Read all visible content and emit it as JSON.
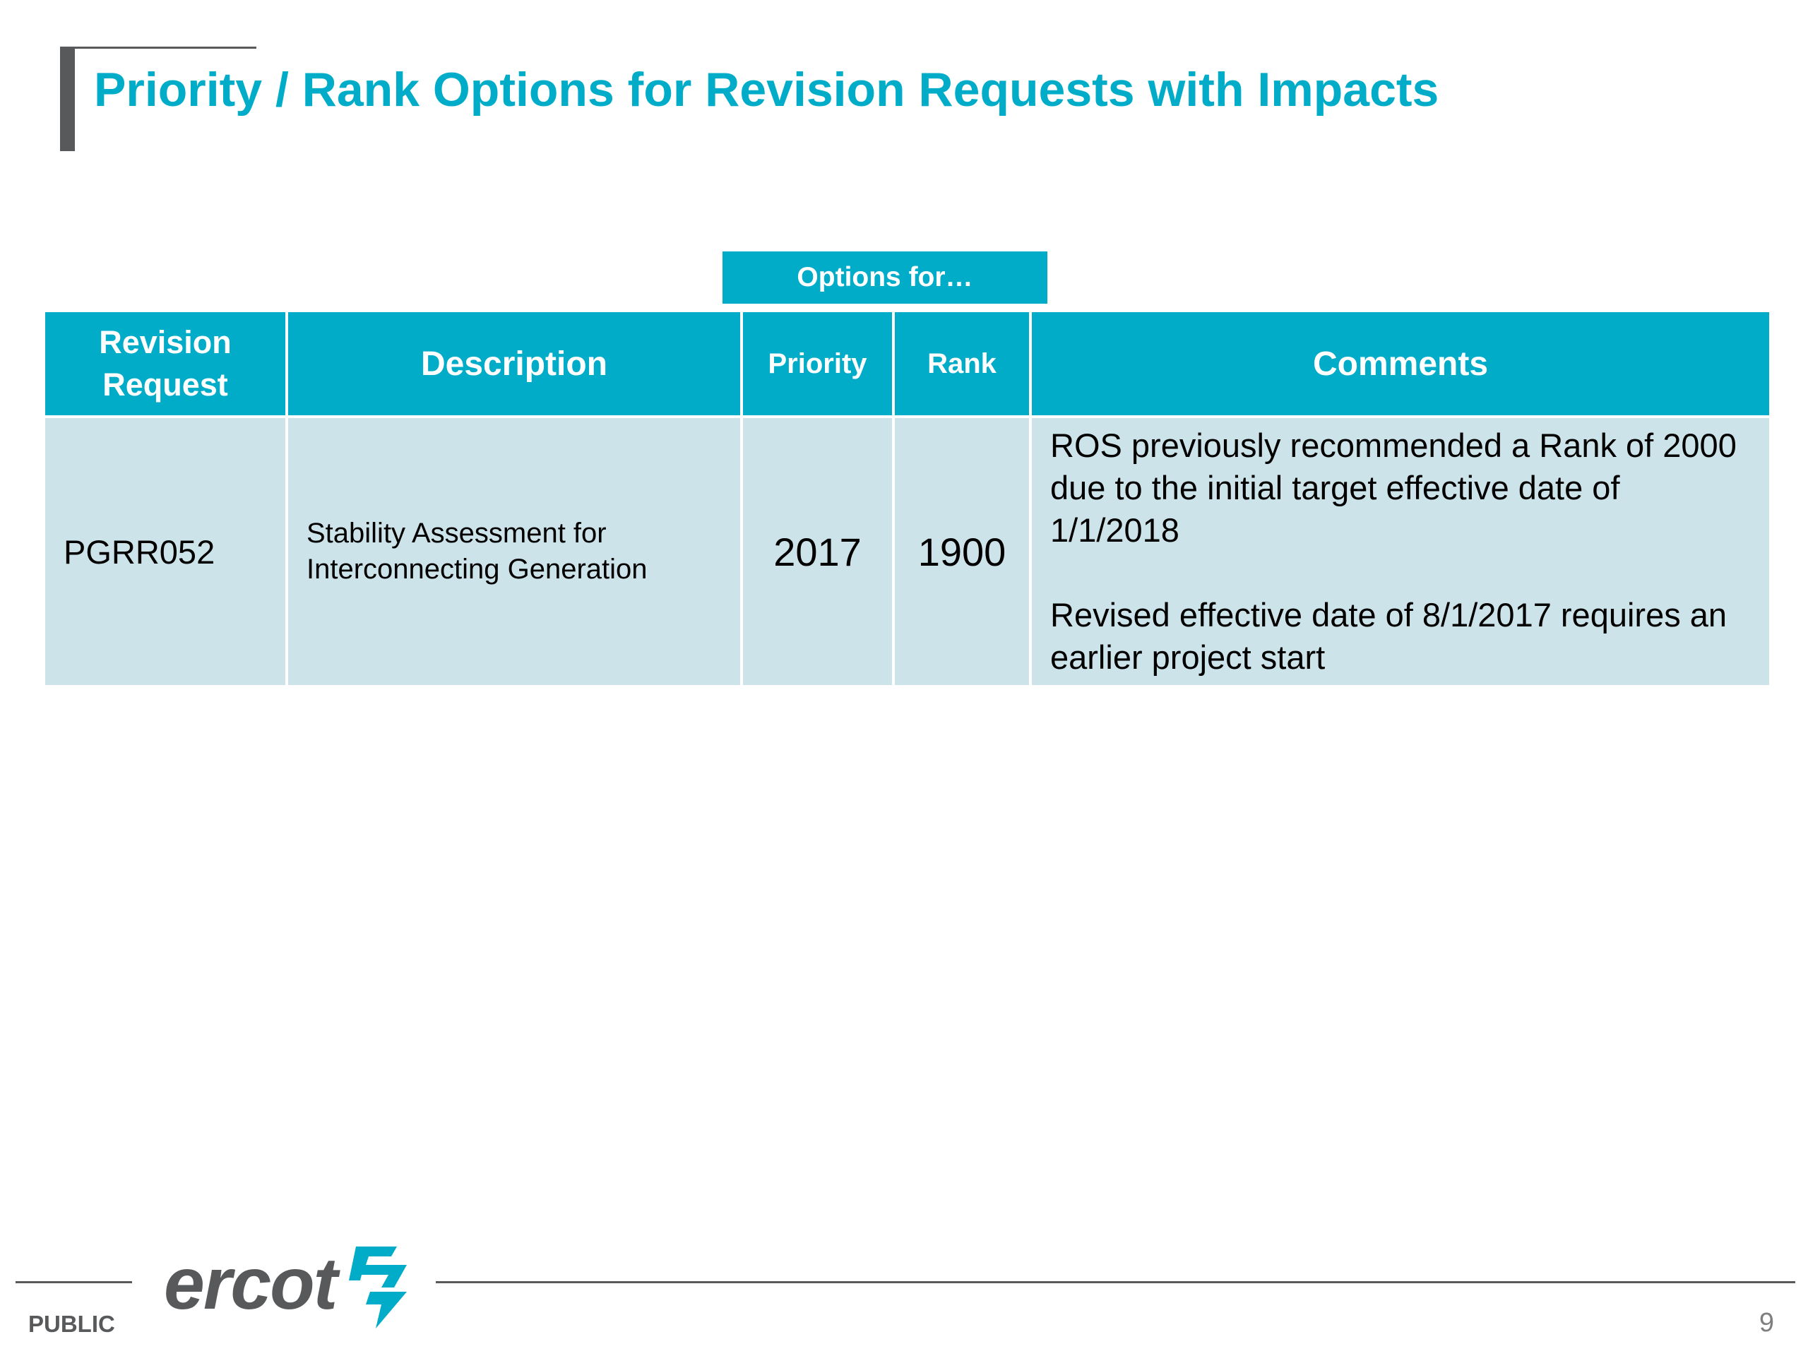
{
  "slide": {
    "title": "Priority / Rank Options for Revision Requests with Impacts",
    "options_label": "Options for…",
    "page_number": "9",
    "classification": "PUBLIC",
    "logo_text": "ercot"
  },
  "table": {
    "headers": {
      "revision_request": "Revision Request",
      "description": "Description",
      "priority": "Priority",
      "rank": "Rank",
      "comments": "Comments"
    },
    "rows": [
      {
        "revision_request": "PGRR052",
        "description": "Stability Assessment for Interconnecting Generation",
        "priority": "2017",
        "rank": "1900",
        "comments": [
          "ROS previously recommended a Rank of 2000 due to the initial target effective date of 1/1/2018",
          "Revised effective date of 8/1/2017 requires an earlier project start"
        ]
      }
    ]
  },
  "colors": {
    "accent": "#00acc8",
    "row_fill": "#cde3ea",
    "dark_gray": "#58595b"
  }
}
